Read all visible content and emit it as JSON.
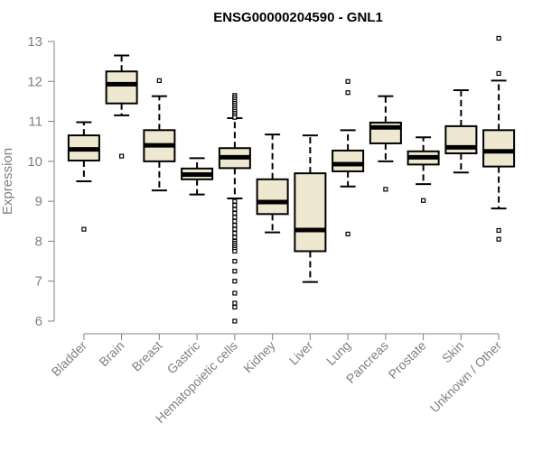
{
  "chart_data": {
    "type": "boxplot",
    "title": "ENSG00000204590 - GNL1",
    "xlabel": "",
    "ylabel": "Expression",
    "ylim": [
      6,
      13
    ],
    "yticks": [
      6,
      7,
      8,
      9,
      10,
      11,
      12,
      13
    ],
    "grid": false,
    "colors": {
      "box_fill": "#efe8d1",
      "stroke": "#000000",
      "axis": "#808080",
      "title": "#000000"
    },
    "categories": [
      "Bladder",
      "Brain",
      "Breast",
      "Gastric",
      "Hematopoietic cells",
      "Kidney",
      "Liver",
      "Lung",
      "Pancreas",
      "Prostate",
      "Skin",
      "Unknown / Other"
    ],
    "boxes": [
      {
        "category": "Bladder",
        "whisker_low": 9.5,
        "q1": 10.02,
        "median": 10.3,
        "q3": 10.65,
        "whisker_high": 10.98,
        "outliers": [
          8.3
        ]
      },
      {
        "category": "Brain",
        "whisker_low": 11.15,
        "q1": 11.45,
        "median": 11.93,
        "q3": 12.25,
        "whisker_high": 12.65,
        "outliers": [
          10.13
        ]
      },
      {
        "category": "Breast",
        "whisker_low": 9.27,
        "q1": 10.0,
        "median": 10.4,
        "q3": 10.78,
        "whisker_high": 11.63,
        "outliers": [
          12.02
        ]
      },
      {
        "category": "Gastric",
        "whisker_low": 9.17,
        "q1": 9.55,
        "median": 9.67,
        "q3": 9.82,
        "whisker_high": 10.08,
        "outliers": []
      },
      {
        "category": "Hematopoietic cells",
        "whisker_low": 9.07,
        "q1": 9.83,
        "median": 10.1,
        "q3": 10.33,
        "whisker_high": 11.08,
        "outliers": [
          11.65,
          11.6,
          11.55,
          11.5,
          11.45,
          11.4,
          11.35,
          11.3,
          11.25,
          11.2,
          11.15,
          11.1,
          9.0,
          8.9,
          8.8,
          8.7,
          8.6,
          8.5,
          8.4,
          8.3,
          8.2,
          8.1,
          8.0,
          7.95,
          7.9,
          7.85,
          7.8,
          7.75,
          7.5,
          7.25,
          7.0,
          6.7,
          6.45,
          6.35,
          6.0
        ]
      },
      {
        "category": "Kidney",
        "whisker_low": 8.22,
        "q1": 8.68,
        "median": 8.98,
        "q3": 9.55,
        "whisker_high": 10.67,
        "outliers": []
      },
      {
        "category": "Liver",
        "whisker_low": 6.98,
        "q1": 7.75,
        "median": 8.28,
        "q3": 9.7,
        "whisker_high": 10.65,
        "outliers": []
      },
      {
        "category": "Lung",
        "whisker_low": 9.37,
        "q1": 9.75,
        "median": 9.93,
        "q3": 10.27,
        "whisker_high": 10.78,
        "outliers": [
          12.0,
          11.72,
          8.18
        ]
      },
      {
        "category": "Pancreas",
        "whisker_low": 10.0,
        "q1": 10.45,
        "median": 10.85,
        "q3": 10.97,
        "whisker_high": 11.63,
        "outliers": [
          9.3
        ]
      },
      {
        "category": "Prostate",
        "whisker_low": 9.43,
        "q1": 9.92,
        "median": 10.1,
        "q3": 10.25,
        "whisker_high": 10.6,
        "outliers": [
          9.02
        ]
      },
      {
        "category": "Skin",
        "whisker_low": 9.72,
        "q1": 10.2,
        "median": 10.35,
        "q3": 10.88,
        "whisker_high": 11.78,
        "outliers": []
      },
      {
        "category": "Unknown / Other",
        "whisker_low": 8.82,
        "q1": 9.87,
        "median": 10.25,
        "q3": 10.78,
        "whisker_high": 12.02,
        "outliers": [
          13.08,
          12.2,
          8.27,
          8.05
        ]
      }
    ]
  }
}
